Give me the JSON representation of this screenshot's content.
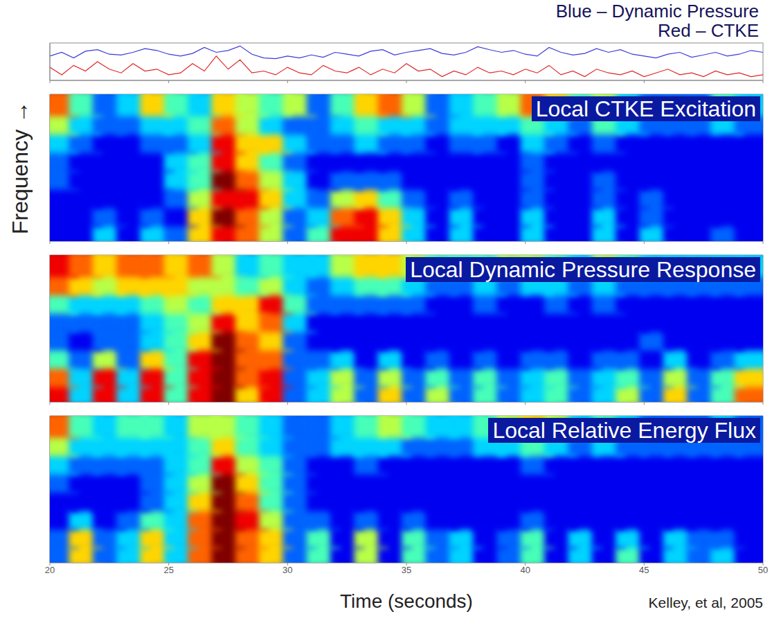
{
  "chart_data": [
    {
      "type": "line",
      "xlim": [
        20,
        50
      ],
      "xticks": [
        20,
        25,
        30,
        35,
        40,
        45,
        50
      ],
      "ylim": [
        0,
        10
      ],
      "tick_labels": false,
      "legend": "top right",
      "x": [
        20,
        20.5,
        21,
        21.5,
        22,
        22.5,
        23,
        23.5,
        24,
        24.5,
        25,
        25.5,
        26,
        26.5,
        27,
        27.5,
        28,
        28.5,
        29,
        29.5,
        30,
        30.5,
        31,
        31.5,
        32,
        32.5,
        33,
        33.5,
        34,
        34.5,
        35,
        35.5,
        36,
        36.5,
        37,
        37.5,
        38,
        38.5,
        39,
        39.5,
        40,
        40.5,
        41,
        41.5,
        42,
        42.5,
        43,
        43.5,
        44,
        44.5,
        45,
        45.5,
        46,
        46.5,
        47,
        47.5,
        48,
        48.5,
        49,
        49.5,
        50
      ],
      "series": [
        {
          "name": "Blue – Dynamic Pressure",
          "color": "#3a3ad8",
          "values": [
            6.5,
            7.5,
            6.0,
            7.8,
            8.2,
            7.0,
            6.8,
            7.5,
            8.5,
            8.0,
            7.0,
            6.5,
            7.2,
            8.8,
            7.5,
            8.0,
            9.2,
            7.0,
            6.0,
            5.8,
            6.5,
            6.0,
            6.8,
            6.2,
            7.5,
            7.0,
            6.5,
            7.8,
            8.2,
            6.8,
            7.5,
            8.0,
            8.5,
            7.2,
            6.8,
            7.5,
            9.0,
            8.2,
            7.5,
            8.0,
            7.0,
            6.5,
            8.8,
            7.5,
            6.8,
            7.2,
            8.5,
            7.5,
            8.2,
            7.0,
            6.5,
            6.0,
            7.0,
            7.5,
            6.2,
            6.8,
            7.5,
            6.5,
            7.0,
            8.0,
            7.5
          ]
        },
        {
          "name": "Red – CTKE",
          "color": "#e02424",
          "values": [
            3.5,
            1.5,
            4.0,
            2.5,
            5.0,
            3.0,
            2.0,
            4.5,
            2.5,
            3.0,
            1.5,
            2.0,
            4.5,
            2.5,
            6.5,
            3.0,
            5.5,
            2.0,
            2.5,
            1.5,
            3.5,
            2.0,
            1.5,
            4.0,
            2.5,
            2.0,
            3.5,
            1.5,
            3.0,
            2.0,
            4.5,
            2.5,
            3.0,
            1.0,
            2.5,
            1.5,
            3.5,
            2.0,
            2.5,
            1.5,
            3.0,
            2.0,
            4.0,
            1.5,
            2.5,
            1.0,
            3.0,
            2.0,
            1.5,
            2.5,
            1.0,
            2.0,
            3.0,
            1.5,
            2.0,
            1.0,
            2.5,
            1.5,
            2.0,
            1.0,
            1.5
          ]
        }
      ]
    },
    {
      "type": "heatmap",
      "title": "Local CTKE Excitation",
      "ylabel": "Frequency →",
      "xlim": [
        20,
        50
      ],
      "xticks": [
        20,
        25,
        30,
        35,
        40,
        45,
        50
      ],
      "ylim": [
        0,
        8
      ],
      "tick_labels": false,
      "color_range": [
        0,
        9
      ],
      "x": [
        20,
        21,
        22,
        23,
        24,
        25,
        26,
        27,
        28,
        29,
        30,
        31,
        32,
        33,
        34,
        35,
        36,
        37,
        38,
        39,
        40,
        41,
        42,
        43,
        44,
        45,
        46,
        47,
        48,
        49
      ],
      "y": [
        0,
        1,
        2,
        3,
        4,
        5,
        6,
        7
      ],
      "cells": [
        [
          1,
          1,
          3,
          1,
          3,
          2,
          6,
          8,
          7,
          5,
          2,
          4,
          8,
          8,
          6,
          3,
          1,
          3,
          1,
          1,
          3,
          1,
          1,
          3,
          1,
          3,
          1,
          1,
          2,
          1
        ],
        [
          1,
          1,
          2,
          1,
          2,
          1,
          6,
          9,
          7,
          5,
          2,
          3,
          7,
          8,
          6,
          3,
          1,
          3,
          1,
          1,
          3,
          1,
          1,
          3,
          1,
          2,
          1,
          1,
          1,
          1
        ],
        [
          1,
          1,
          1,
          1,
          1,
          2,
          5,
          8,
          8,
          6,
          3,
          2,
          5,
          6,
          4,
          2,
          1,
          2,
          1,
          1,
          2,
          1,
          1,
          2,
          1,
          2,
          1,
          1,
          1,
          1
        ],
        [
          2,
          1,
          1,
          1,
          1,
          3,
          4,
          9,
          7,
          5,
          3,
          1,
          2,
          2,
          2,
          1,
          1,
          1,
          1,
          1,
          2,
          1,
          1,
          2,
          1,
          1,
          1,
          1,
          1,
          1
        ],
        [
          2,
          1,
          1,
          1,
          1,
          3,
          4,
          8,
          6,
          4,
          2,
          1,
          1,
          1,
          1,
          1,
          1,
          1,
          1,
          1,
          2,
          1,
          1,
          1,
          1,
          1,
          1,
          1,
          1,
          1
        ],
        [
          3,
          2,
          1,
          1,
          2,
          2,
          3,
          8,
          6,
          6,
          3,
          2,
          2,
          3,
          2,
          2,
          1,
          2,
          2,
          1,
          3,
          2,
          1,
          2,
          1,
          1,
          1,
          1,
          1,
          1
        ],
        [
          5,
          3,
          2,
          2,
          3,
          3,
          4,
          7,
          5,
          3,
          2,
          2,
          3,
          4,
          3,
          3,
          2,
          3,
          3,
          3,
          4,
          3,
          2,
          4,
          3,
          2,
          2,
          2,
          3,
          2
        ],
        [
          7,
          4,
          2,
          3,
          6,
          4,
          3,
          6,
          5,
          4,
          5,
          2,
          4,
          6,
          7,
          5,
          2,
          3,
          4,
          5,
          7,
          6,
          4,
          5,
          3,
          2,
          2,
          2,
          4,
          3
        ]
      ]
    },
    {
      "type": "heatmap",
      "title": "Local Dynamic Pressure Response",
      "xlim": [
        20,
        50
      ],
      "xticks": [
        20,
        25,
        30,
        35,
        40,
        45,
        50
      ],
      "ylim": [
        0,
        8
      ],
      "tick_labels": false,
      "color_range": [
        0,
        9
      ],
      "x": [
        20,
        21,
        22,
        23,
        24,
        25,
        26,
        27,
        28,
        29,
        30,
        31,
        32,
        33,
        34,
        35,
        36,
        37,
        38,
        39,
        40,
        41,
        42,
        43,
        44,
        45,
        46,
        47,
        48,
        49
      ],
      "y": [
        0,
        1,
        2,
        3,
        4,
        5,
        6,
        7
      ],
      "cells": [
        [
          8,
          3,
          8,
          3,
          8,
          4,
          8,
          9,
          6,
          8,
          2,
          3,
          5,
          2,
          6,
          2,
          5,
          2,
          4,
          2,
          3,
          4,
          2,
          3,
          5,
          2,
          6,
          2,
          4,
          7
        ],
        [
          7,
          3,
          8,
          3,
          8,
          4,
          8,
          9,
          7,
          8,
          2,
          3,
          5,
          2,
          5,
          2,
          4,
          2,
          4,
          2,
          3,
          4,
          2,
          3,
          4,
          2,
          5,
          2,
          4,
          6
        ],
        [
          4,
          2,
          5,
          2,
          6,
          4,
          8,
          9,
          7,
          7,
          2,
          2,
          3,
          1,
          3,
          1,
          2,
          1,
          2,
          1,
          2,
          2,
          1,
          2,
          2,
          1,
          3,
          1,
          2,
          3
        ],
        [
          2,
          1,
          2,
          2,
          3,
          4,
          6,
          9,
          7,
          6,
          2,
          1,
          1,
          1,
          1,
          1,
          1,
          1,
          1,
          1,
          1,
          1,
          1,
          1,
          1,
          2,
          1,
          1,
          1,
          1
        ],
        [
          2,
          2,
          2,
          2,
          3,
          4,
          5,
          8,
          6,
          7,
          3,
          1,
          1,
          1,
          1,
          1,
          1,
          1,
          1,
          1,
          1,
          1,
          1,
          1,
          1,
          1,
          1,
          1,
          1,
          1
        ],
        [
          4,
          3,
          3,
          3,
          4,
          5,
          4,
          6,
          6,
          8,
          4,
          2,
          2,
          2,
          2,
          2,
          1,
          1,
          2,
          1,
          1,
          2,
          1,
          2,
          1,
          1,
          1,
          1,
          1,
          1
        ],
        [
          7,
          6,
          5,
          6,
          6,
          6,
          5,
          5,
          4,
          5,
          3,
          2,
          3,
          4,
          4,
          3,
          2,
          2,
          3,
          2,
          3,
          3,
          2,
          3,
          2,
          2,
          2,
          2,
          2,
          2
        ],
        [
          8,
          7,
          6,
          7,
          7,
          6,
          7,
          5,
          3,
          4,
          3,
          3,
          5,
          6,
          6,
          5,
          4,
          4,
          4,
          5,
          5,
          4,
          3,
          5,
          4,
          3,
          3,
          3,
          3,
          3
        ]
      ]
    },
    {
      "type": "heatmap",
      "title": "Local Relative Energy Flux",
      "xlabel": "Time (seconds)",
      "annotation": "Kelley, et al, 2005",
      "xlim": [
        20,
        50
      ],
      "xticks": [
        20,
        25,
        30,
        35,
        40,
        45,
        50
      ],
      "ylim": [
        0,
        8
      ],
      "tick_labels": "x",
      "color_range": [
        0,
        9
      ],
      "x": [
        20,
        21,
        22,
        23,
        24,
        25,
        26,
        27,
        28,
        29,
        30,
        31,
        32,
        33,
        34,
        35,
        36,
        37,
        38,
        39,
        40,
        41,
        42,
        43,
        44,
        45,
        46,
        47,
        48,
        49
      ],
      "y": [
        0,
        1,
        2,
        3,
        4,
        5,
        6,
        7
      ],
      "cells": [
        [
          2,
          6,
          2,
          3,
          6,
          3,
          7,
          9,
          7,
          6,
          2,
          4,
          1,
          5,
          1,
          4,
          2,
          3,
          1,
          2,
          4,
          1,
          3,
          1,
          4,
          1,
          3,
          2,
          3,
          1
        ],
        [
          2,
          6,
          2,
          3,
          6,
          3,
          7,
          9,
          7,
          6,
          2,
          4,
          1,
          5,
          1,
          4,
          2,
          3,
          1,
          2,
          4,
          1,
          3,
          1,
          3,
          1,
          3,
          2,
          2,
          1
        ],
        [
          1,
          3,
          1,
          2,
          4,
          3,
          7,
          9,
          8,
          5,
          2,
          2,
          1,
          2,
          1,
          2,
          1,
          1,
          1,
          1,
          2,
          1,
          1,
          1,
          1,
          1,
          1,
          1,
          1,
          1
        ],
        [
          1,
          1,
          1,
          1,
          2,
          3,
          6,
          9,
          7,
          4,
          2,
          1,
          1,
          1,
          1,
          1,
          1,
          1,
          1,
          1,
          1,
          1,
          1,
          1,
          1,
          1,
          1,
          1,
          1,
          1
        ],
        [
          2,
          1,
          1,
          1,
          2,
          3,
          5,
          9,
          6,
          4,
          2,
          1,
          1,
          1,
          1,
          1,
          1,
          1,
          1,
          1,
          1,
          1,
          1,
          1,
          1,
          1,
          1,
          1,
          1,
          1
        ],
        [
          3,
          2,
          2,
          2,
          2,
          3,
          4,
          8,
          5,
          4,
          2,
          1,
          1,
          2,
          1,
          1,
          1,
          1,
          1,
          1,
          2,
          1,
          1,
          1,
          1,
          1,
          1,
          1,
          1,
          1
        ],
        [
          5,
          3,
          3,
          3,
          3,
          3,
          4,
          6,
          4,
          3,
          2,
          2,
          3,
          3,
          3,
          2,
          2,
          2,
          3,
          3,
          4,
          3,
          2,
          3,
          2,
          2,
          2,
          2,
          2,
          2
        ],
        [
          7,
          4,
          3,
          4,
          4,
          3,
          5,
          5,
          4,
          3,
          2,
          2,
          3,
          4,
          5,
          4,
          3,
          3,
          4,
          5,
          6,
          5,
          3,
          4,
          3,
          2,
          2,
          2,
          3,
          2
        ]
      ]
    }
  ]
}
